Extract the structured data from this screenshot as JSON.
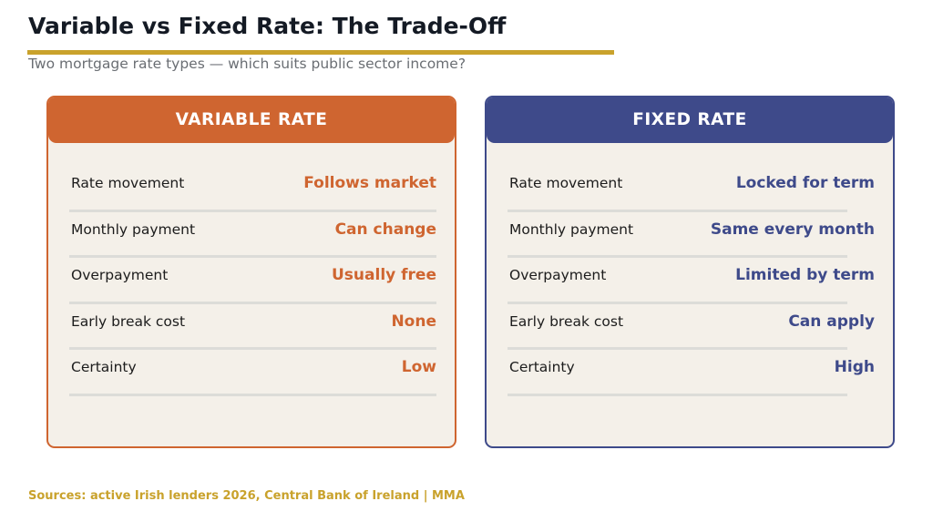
{
  "title": "Variable vs Fixed Rate: The Trade-Off",
  "subtitle": "Two mortgage rate types — which suits public sector income?",
  "cards": [
    {
      "heading": "VARIABLE RATE",
      "accent": "#cf6530",
      "rows": [
        {
          "label": "Rate movement",
          "value": "Follows market"
        },
        {
          "label": "Monthly payment",
          "value": "Can change"
        },
        {
          "label": "Overpayment",
          "value": "Usually free"
        },
        {
          "label": "Early break cost",
          "value": "None"
        },
        {
          "label": "Certainty",
          "value": "Low"
        }
      ]
    },
    {
      "heading": "FIXED RATE",
      "accent": "#3e4a8a",
      "rows": [
        {
          "label": "Rate movement",
          "value": "Locked for term"
        },
        {
          "label": "Monthly payment",
          "value": "Same every month"
        },
        {
          "label": "Overpayment",
          "value": "Limited by term"
        },
        {
          "label": "Early break cost",
          "value": "Can apply"
        },
        {
          "label": "Certainty",
          "value": "High"
        }
      ]
    }
  ],
  "footer": "Sources: active Irish lenders 2026, Central Bank of Ireland  |  MMA",
  "colors": {
    "title_rule": "#c9a22c",
    "footer_text": "#c9a22c",
    "card_background": "#f4f0e9"
  }
}
